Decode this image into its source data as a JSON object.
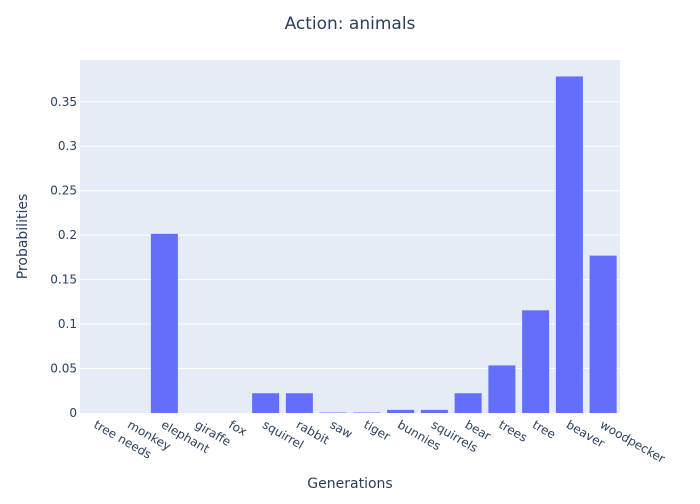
{
  "chart_data": {
    "type": "bar",
    "title": "Action: animals",
    "xlabel": "Generations",
    "ylabel": "Probabilities",
    "categories": [
      "tree needs",
      "monkey",
      "elephant",
      "giraffe",
      "fox",
      "squirrel",
      "rabbit",
      "saw",
      "tiger",
      "bunnies",
      "squirrels",
      "bear",
      "trees",
      "tree",
      "beaver",
      "woodpecker"
    ],
    "values": [
      0.0,
      0.0,
      0.2015,
      0.0,
      0.0,
      0.0222,
      0.0222,
      0.0005,
      0.0005,
      0.0035,
      0.0035,
      0.0222,
      0.0535,
      0.1155,
      0.3785,
      0.177
    ],
    "ylim": [
      0,
      0.397
    ],
    "yticks": [
      0,
      0.05,
      0.1,
      0.15,
      0.2,
      0.25,
      0.3,
      0.35
    ],
    "ytick_labels": [
      "0",
      "0.05",
      "0.1",
      "0.15",
      "0.2",
      "0.25",
      "0.3",
      "0.35"
    ],
    "grid": true,
    "colors": {
      "bar": "#636efa",
      "plot_background": "#e5ecf6",
      "grid": "#ffffff",
      "text": "#2a3f5f"
    }
  }
}
